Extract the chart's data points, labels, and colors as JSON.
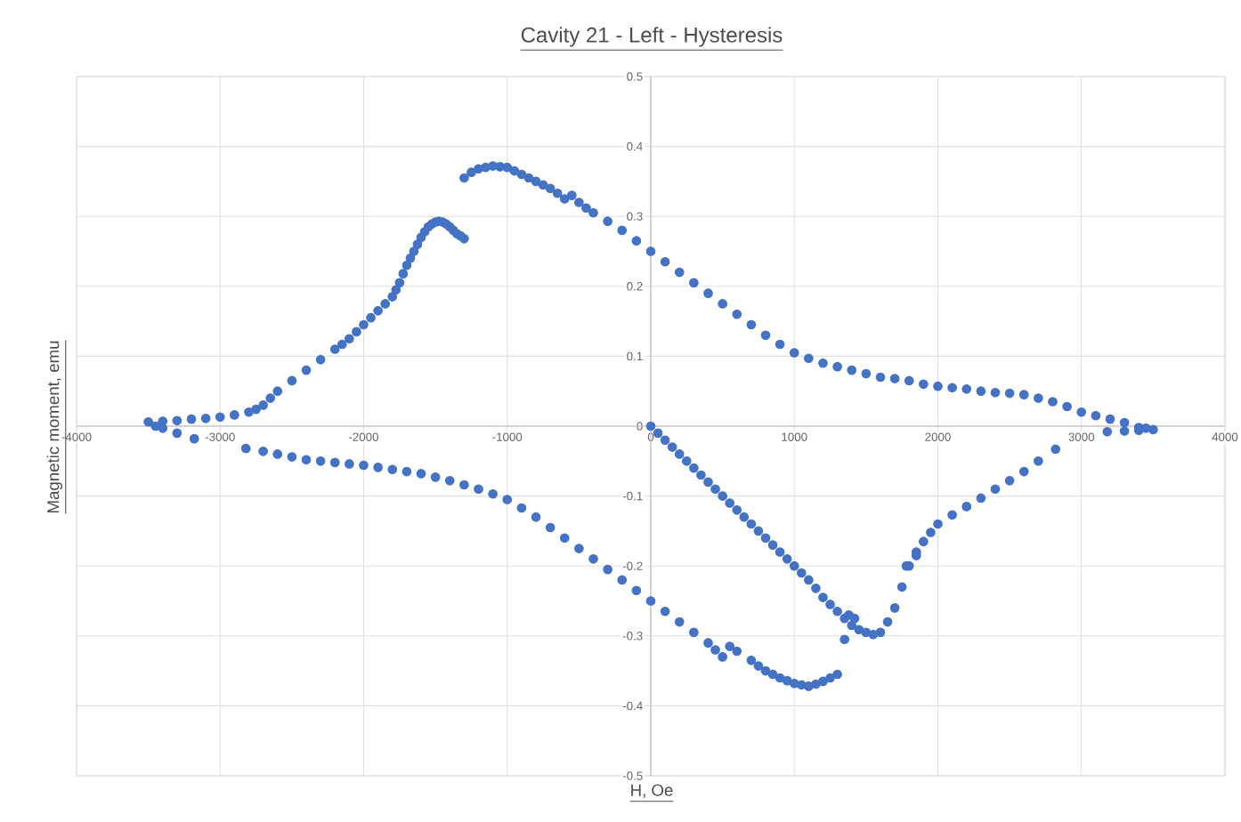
{
  "chart_data": {
    "type": "scatter",
    "title": "Cavity 21 - Left - Hysteresis",
    "xlabel": "H, Oe",
    "ylabel": "Magnetic moment, emu",
    "x": [
      0,
      50,
      100,
      150,
      200,
      250,
      300,
      350,
      400,
      450,
      500,
      550,
      600,
      650,
      700,
      750,
      800,
      850,
      900,
      950,
      1000,
      1050,
      1100,
      1150,
      1200,
      1250,
      1300,
      1350,
      1400,
      1450,
      1500,
      1550,
      1600,
      1650,
      1700,
      1750,
      1800,
      1850,
      1900,
      1950,
      2000,
      2100,
      2200,
      2300,
      2400,
      2500,
      2600,
      2700,
      2820,
      3180,
      3300,
      3400,
      3500,
      1350,
      1380,
      1420,
      1780,
      1850,
      3450,
      3400,
      3300,
      3200,
      3100,
      3000,
      2900,
      2800,
      2700,
      2600,
      2500,
      2400,
      2300,
      2200,
      2100,
      2000,
      1900,
      1800,
      1700,
      1600,
      1500,
      1400,
      1300,
      1200,
      1100,
      1000,
      900,
      800,
      700,
      600,
      500,
      400,
      300,
      200,
      100,
      0,
      -100,
      -200,
      -300,
      -400,
      -450,
      -500,
      -550,
      -600,
      -650,
      -700,
      -750,
      -800,
      -850,
      -900,
      -950,
      -1000,
      -1050,
      -1100,
      -1150,
      -1200,
      -1250,
      -1300,
      -1300,
      -1325,
      -1350,
      -1375,
      -1400,
      -1425,
      -1450,
      -1475,
      -1500,
      -1525,
      -1550,
      -1575,
      -1600,
      -1625,
      -1650,
      -1675,
      -1700,
      -1725,
      -1750,
      -1775,
      -1800,
      -1850,
      -1900,
      -1950,
      -2000,
      -2050,
      -2100,
      -2150,
      -2200,
      -2300,
      -2400,
      -2500,
      -2600,
      -2650,
      -2700,
      -2750,
      -2800,
      -2900,
      -3000,
      -3100,
      -3200,
      -3300,
      -3400,
      -3500,
      -3450,
      -3400,
      -3300,
      -3180,
      -2820,
      -2700,
      -2600,
      -2500,
      -2400,
      -2300,
      -2200,
      -2100,
      -2000,
      -1900,
      -1800,
      -1700,
      -1600,
      -1500,
      -1400,
      -1300,
      -1200,
      -1100,
      -1000,
      -900,
      -800,
      -700,
      -600,
      -500,
      -400,
      -300,
      -200,
      -100,
      0,
      100,
      200,
      300,
      400,
      450,
      500,
      550,
      600,
      700,
      750,
      800,
      850,
      900,
      950,
      1000,
      1050,
      1100,
      1150,
      1200,
      1250,
      1300
    ],
    "values": [
      0,
      -0.01,
      -0.02,
      -0.03,
      -0.04,
      -0.05,
      -0.06,
      -0.07,
      -0.08,
      -0.09,
      -0.1,
      -0.11,
      -0.12,
      -0.13,
      -0.14,
      -0.15,
      -0.16,
      -0.17,
      -0.18,
      -0.19,
      -0.2,
      -0.21,
      -0.22,
      -0.232,
      -0.245,
      -0.255,
      -0.265,
      -0.275,
      -0.285,
      -0.291,
      -0.295,
      -0.298,
      -0.295,
      -0.28,
      -0.26,
      -0.23,
      -0.2,
      -0.18,
      -0.165,
      -0.152,
      -0.14,
      -0.127,
      -0.115,
      -0.103,
      -0.09,
      -0.078,
      -0.065,
      -0.05,
      -0.033,
      -0.008,
      -0.007,
      -0.006,
      -0.005,
      -0.305,
      -0.27,
      -0.275,
      -0.2,
      -0.185,
      -0.003,
      -0.002,
      0.005,
      0.01,
      0.015,
      0.02,
      0.028,
      0.035,
      0.04,
      0.045,
      0.047,
      0.048,
      0.05,
      0.053,
      0.055,
      0.057,
      0.06,
      0.065,
      0.068,
      0.07,
      0.075,
      0.08,
      0.085,
      0.09,
      0.097,
      0.105,
      0.117,
      0.13,
      0.145,
      0.16,
      0.175,
      0.19,
      0.205,
      0.22,
      0.235,
      0.25,
      0.265,
      0.28,
      0.293,
      0.305,
      0.312,
      0.32,
      0.33,
      0.325,
      0.333,
      0.34,
      0.345,
      0.35,
      0.355,
      0.36,
      0.365,
      0.37,
      0.371,
      0.372,
      0.37,
      0.368,
      0.363,
      0.355,
      0.268,
      0.272,
      0.275,
      0.28,
      0.285,
      0.289,
      0.292,
      0.293,
      0.292,
      0.289,
      0.285,
      0.278,
      0.27,
      0.26,
      0.25,
      0.24,
      0.23,
      0.218,
      0.205,
      0.195,
      0.185,
      0.175,
      0.165,
      0.155,
      0.145,
      0.135,
      0.125,
      0.117,
      0.11,
      0.095,
      0.08,
      0.065,
      0.05,
      0.04,
      0.03,
      0.024,
      0.02,
      0.016,
      0.013,
      0.011,
      0.01,
      0.008,
      0.007,
      0.006,
      0,
      -0.003,
      -0.01,
      -0.018,
      -0.032,
      -0.036,
      -0.04,
      -0.044,
      -0.048,
      -0.05,
      -0.052,
      -0.054,
      -0.056,
      -0.059,
      -0.062,
      -0.065,
      -0.068,
      -0.073,
      -0.078,
      -0.084,
      -0.09,
      -0.097,
      -0.105,
      -0.117,
      -0.13,
      -0.145,
      -0.16,
      -0.175,
      -0.19,
      -0.205,
      -0.22,
      -0.235,
      -0.25,
      -0.265,
      -0.28,
      -0.295,
      -0.31,
      -0.32,
      -0.33,
      -0.315,
      -0.322,
      -0.335,
      -0.343,
      -0.35,
      -0.355,
      -0.36,
      -0.364,
      -0.368,
      -0.37,
      -0.372,
      -0.369,
      -0.365,
      -0.36,
      -0.355
    ],
    "color": "#4472c4",
    "marker": "circle",
    "grid": true,
    "xlim": [
      -4000,
      4000
    ],
    "ylim": [
      -0.5,
      0.5
    ],
    "xticks": [
      -4000,
      -3000,
      -2000,
      -1000,
      0,
      1000,
      2000,
      3000,
      4000
    ],
    "yticks": [
      -0.5,
      -0.4,
      -0.3,
      -0.2,
      -0.1,
      0,
      0.1,
      0.2,
      0.3,
      0.4,
      0.5
    ]
  }
}
